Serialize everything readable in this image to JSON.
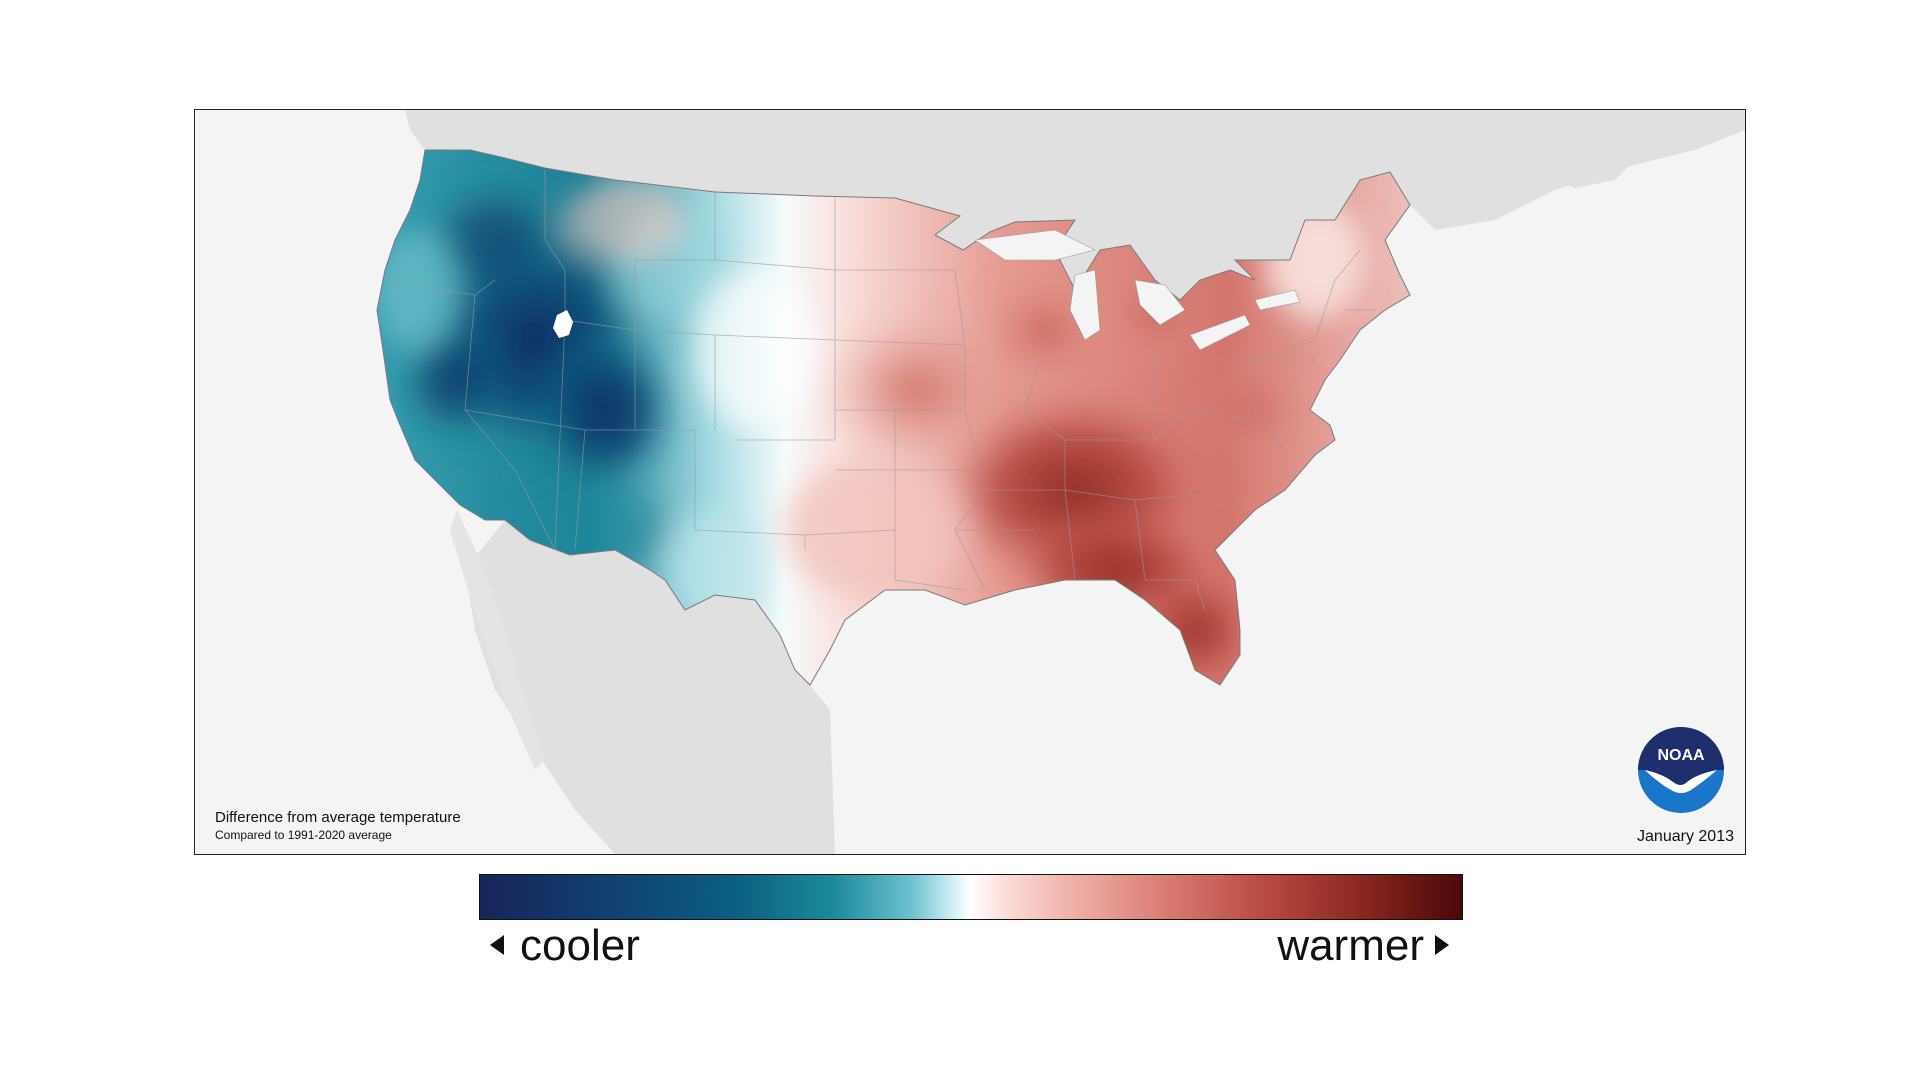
{
  "map": {
    "caption_title": "Difference from average temperature",
    "caption_subtitle": "Compared to 1991-2020 average",
    "date": "January 2013",
    "logo_text": "NOAA"
  },
  "legend": {
    "cooler_label": "cooler",
    "warmer_label": "warmer"
  },
  "colors": {
    "cool_deep": "#16245a",
    "cool_mid": "#1c8a9c",
    "neutral": "#ffffff",
    "warm_mid": "#d97a71",
    "warm_deep": "#4a0808",
    "land_outside": "#e0e0e0",
    "water": "#f4f4f4"
  }
}
